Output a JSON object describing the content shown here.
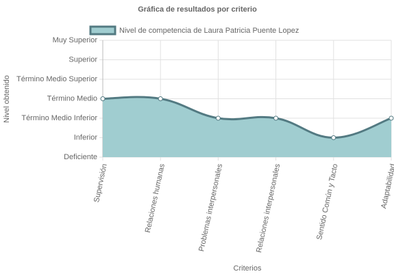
{
  "chart_data": {
    "type": "area",
    "title": "Gráfica de resultados por criterio",
    "x_label": "Criterios",
    "y_label": "Nivel obtenido",
    "categories": [
      "Supervisión",
      "Relaciones humanas",
      "Problemas interpersonales",
      "Relaciones interpersonales",
      "Sentido Común y Tacto",
      "Adaptabilidad"
    ],
    "series": [
      {
        "name": "Nivel de competencia de Laura Patricia Puente Lopez",
        "color": "#a0cdd0",
        "line_color": "#537a82",
        "values": [
          3,
          3,
          2,
          2,
          1,
          2
        ]
      }
    ],
    "ylim": [
      0,
      6
    ],
    "yticks": [
      {
        "value": 0,
        "label": "Deficiente"
      },
      {
        "value": 1,
        "label": "Inferior"
      },
      {
        "value": 2,
        "label": "Término Medio Inferior"
      },
      {
        "value": 3,
        "label": "Término Medio"
      },
      {
        "value": 4,
        "label": "Término Medio Superior"
      },
      {
        "value": 5,
        "label": "Superior"
      },
      {
        "value": 6,
        "label": "Muy Superior"
      }
    ],
    "grid": true
  }
}
